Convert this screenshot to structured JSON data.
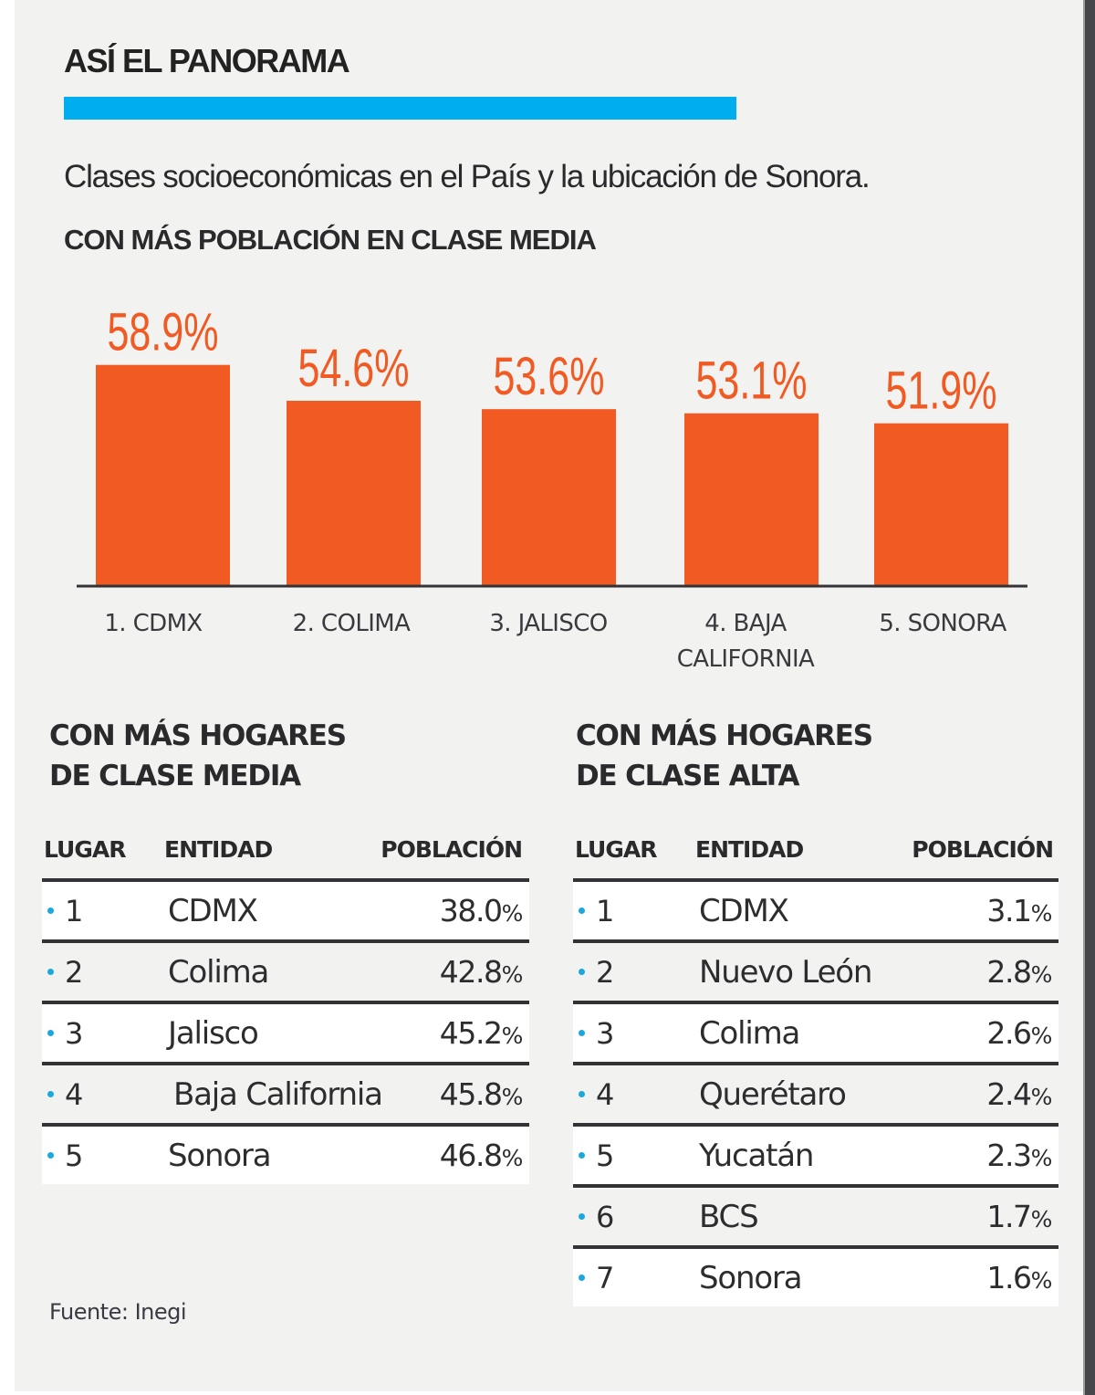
{
  "header": {
    "title": "ASÍ EL PANORAMA",
    "subtitle": "Clases socioeconómicas en el País y la ubicación de Sonora."
  },
  "colors": {
    "accent": "#00AEEF",
    "bar": "#F15A22",
    "label": "#F15A22",
    "dot": "#1BA8DA",
    "rule": "#333336"
  },
  "chart_data": {
    "type": "bar",
    "title": "CON MÁS POBLACIÓN EN CLASE MEDIA",
    "categories": [
      "1. CDMX",
      "2. COLIMA",
      "3. JALISCO",
      "4. BAJA CALIFORNIA",
      "5. SONORA"
    ],
    "category_lines": [
      [
        "1. CDMX"
      ],
      [
        "2. COLIMA"
      ],
      [
        "3. JALISCO"
      ],
      [
        "4. BAJA",
        "CALIFORNIA"
      ],
      [
        "5. SONORA"
      ]
    ],
    "values": [
      58.9,
      54.6,
      53.6,
      53.1,
      51.9
    ],
    "data_labels": [
      "58.9%",
      "54.6%",
      "53.6%",
      "53.1%",
      "51.9%"
    ],
    "unit": "%",
    "xlabel": "",
    "ylabel": "",
    "grid": false
  },
  "tables": [
    {
      "title_lines": [
        "CON MÁS HOGARES",
        "DE CLASE MEDIA"
      ],
      "headers": [
        "LUGAR",
        "ENTIDAD",
        "POBLACIÓN"
      ],
      "rows": [
        {
          "rank": "1",
          "entity": "CDMX",
          "value": "38.0",
          "unit": "%"
        },
        {
          "rank": "2",
          "entity": "Colima",
          "value": "42.8",
          "unit": "%"
        },
        {
          "rank": "3",
          "entity": "Jalisco",
          "value": "45.2",
          "unit": "%"
        },
        {
          "rank": "4",
          "entity": "Baja California",
          "value": "45.8",
          "unit": "%"
        },
        {
          "rank": "5",
          "entity": "Sonora",
          "value": "46.8",
          "unit": "%"
        }
      ]
    },
    {
      "title_lines": [
        "CON MÁS HOGARES",
        "DE CLASE ALTA"
      ],
      "headers": [
        "LUGAR",
        "ENTIDAD",
        "POBLACIÓN"
      ],
      "rows": [
        {
          "rank": "1",
          "entity": "CDMX",
          "value": "3.1",
          "unit": "%"
        },
        {
          "rank": "2",
          "entity": "Nuevo León",
          "value": "2.8",
          "unit": "%"
        },
        {
          "rank": "3",
          "entity": "Colima",
          "value": "2.6",
          "unit": "%"
        },
        {
          "rank": "4",
          "entity": "Querétaro",
          "value": "2.4",
          "unit": "%"
        },
        {
          "rank": "5",
          "entity": "Yucatán",
          "value": "2.3",
          "unit": "%"
        },
        {
          "rank": "6",
          "entity": "BCS",
          "value": "1.7",
          "unit": "%"
        },
        {
          "rank": "7",
          "entity": "Sonora",
          "value": "1.6",
          "unit": "%"
        }
      ]
    }
  ],
  "footer": {
    "source": "Fuente: Inegi"
  }
}
